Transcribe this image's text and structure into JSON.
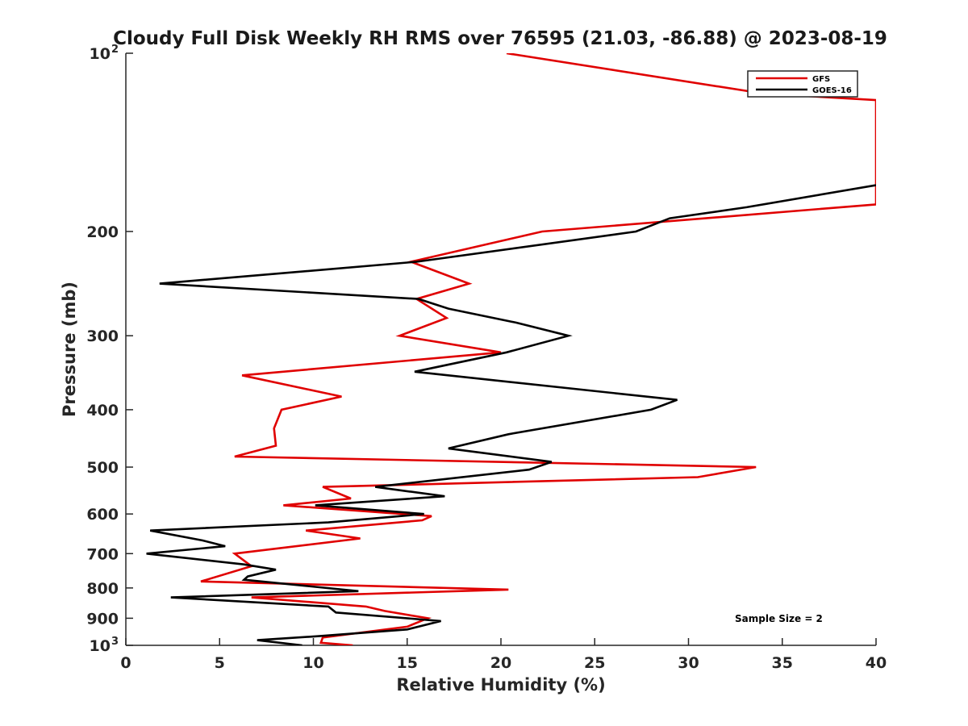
{
  "chart_data": {
    "type": "line",
    "title": "Cloudy Full Disk Weekly RH RMS over 76595 (21.03, -86.88) @ 2023-08-19",
    "xlabel": "Relative Humidity (%)",
    "ylabel": "Pressure (mb)",
    "xlim": [
      0,
      40
    ],
    "ylim": [
      100,
      1000
    ],
    "yscale": "log",
    "y_reversed": true,
    "grid": false,
    "legend_position": "top-right",
    "x_ticks": [
      "0",
      "5",
      "10",
      "15",
      "20",
      "25",
      "30",
      "35",
      "40"
    ],
    "y_ticks": [
      {
        "value": 100,
        "base": "10",
        "exp": "2"
      },
      {
        "value": 200,
        "label": "200"
      },
      {
        "value": 300,
        "label": "300"
      },
      {
        "value": 400,
        "label": "400"
      },
      {
        "value": 500,
        "label": "500"
      },
      {
        "value": 600,
        "label": "600"
      },
      {
        "value": 700,
        "label": "700"
      },
      {
        "value": 800,
        "label": "800"
      },
      {
        "value": 900,
        "label": "900"
      },
      {
        "value": 1000,
        "base": "10",
        "exp": "3"
      }
    ],
    "series": [
      {
        "name": "GFS",
        "color": "#e00000",
        "points": [
          [
            20.3,
            100
          ],
          [
            34.0,
            117
          ],
          [
            40.0,
            120
          ],
          [
            40.0,
            180
          ],
          [
            22.2,
            200
          ],
          [
            15.2,
            225
          ],
          [
            18.3,
            245
          ],
          [
            15.5,
            260
          ],
          [
            17.1,
            280
          ],
          [
            14.6,
            300
          ],
          [
            20.0,
            320
          ],
          [
            6.2,
            350
          ],
          [
            11.5,
            380
          ],
          [
            8.3,
            400
          ],
          [
            7.9,
            430
          ],
          [
            8.0,
            460
          ],
          [
            5.8,
            480
          ],
          [
            33.6,
            500
          ],
          [
            30.5,
            520
          ],
          [
            10.5,
            540
          ],
          [
            12.0,
            565
          ],
          [
            8.4,
            580
          ],
          [
            16.3,
            605
          ],
          [
            15.8,
            615
          ],
          [
            9.6,
            640
          ],
          [
            12.5,
            660
          ],
          [
            5.8,
            700
          ],
          [
            6.7,
            735
          ],
          [
            4.0,
            780
          ],
          [
            20.4,
            805
          ],
          [
            6.7,
            830
          ],
          [
            12.8,
            860
          ],
          [
            13.8,
            875
          ],
          [
            16.1,
            900
          ],
          [
            15.0,
            930
          ],
          [
            10.5,
            970
          ],
          [
            10.4,
            990
          ],
          [
            12.1,
            1000
          ]
        ]
      },
      {
        "name": "GOES-16",
        "color": "#000000",
        "points": [
          [
            40.0,
            167
          ],
          [
            33.1,
            182
          ],
          [
            29.0,
            190
          ],
          [
            27.2,
            200
          ],
          [
            15.5,
            225
          ],
          [
            1.8,
            245
          ],
          [
            15.6,
            260
          ],
          [
            17.2,
            270
          ],
          [
            20.8,
            285
          ],
          [
            23.6,
            300
          ],
          [
            20.3,
            320
          ],
          [
            15.4,
            345
          ],
          [
            29.4,
            385
          ],
          [
            28.0,
            400
          ],
          [
            20.4,
            440
          ],
          [
            17.2,
            465
          ],
          [
            22.7,
            490
          ],
          [
            21.5,
            505
          ],
          [
            13.3,
            540
          ],
          [
            17.0,
            560
          ],
          [
            10.1,
            580
          ],
          [
            15.9,
            600
          ],
          [
            10.8,
            620
          ],
          [
            1.3,
            640
          ],
          [
            4.1,
            665
          ],
          [
            5.3,
            680
          ],
          [
            1.1,
            700
          ],
          [
            6.3,
            730
          ],
          [
            8.0,
            745
          ],
          [
            6.5,
            765
          ],
          [
            6.3,
            775
          ],
          [
            12.4,
            810
          ],
          [
            2.4,
            830
          ],
          [
            10.8,
            860
          ],
          [
            11.2,
            880
          ],
          [
            16.8,
            910
          ],
          [
            15.0,
            940
          ],
          [
            10.3,
            965
          ],
          [
            7.0,
            980
          ],
          [
            9.4,
            1000
          ]
        ]
      }
    ],
    "legend": [
      "GFS",
      "GOES-16"
    ],
    "annotation": "Sample Size = 2"
  }
}
